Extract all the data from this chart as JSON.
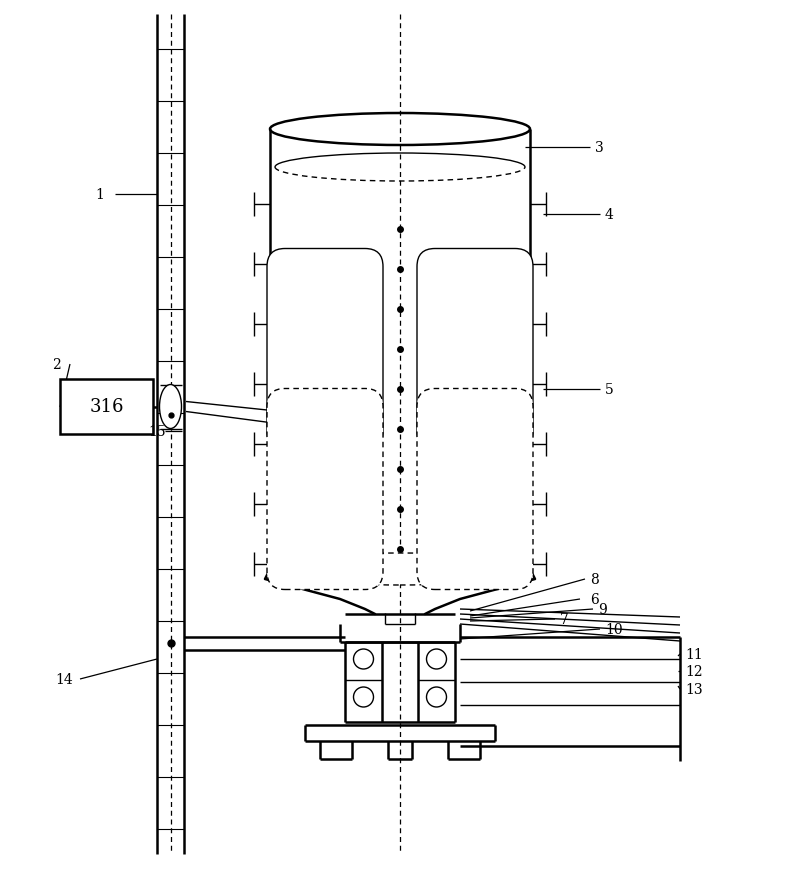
{
  "bg_color": "#ffffff",
  "line_color": "#000000",
  "fig_width": 8.0,
  "fig_height": 8.7,
  "dpi": 100
}
